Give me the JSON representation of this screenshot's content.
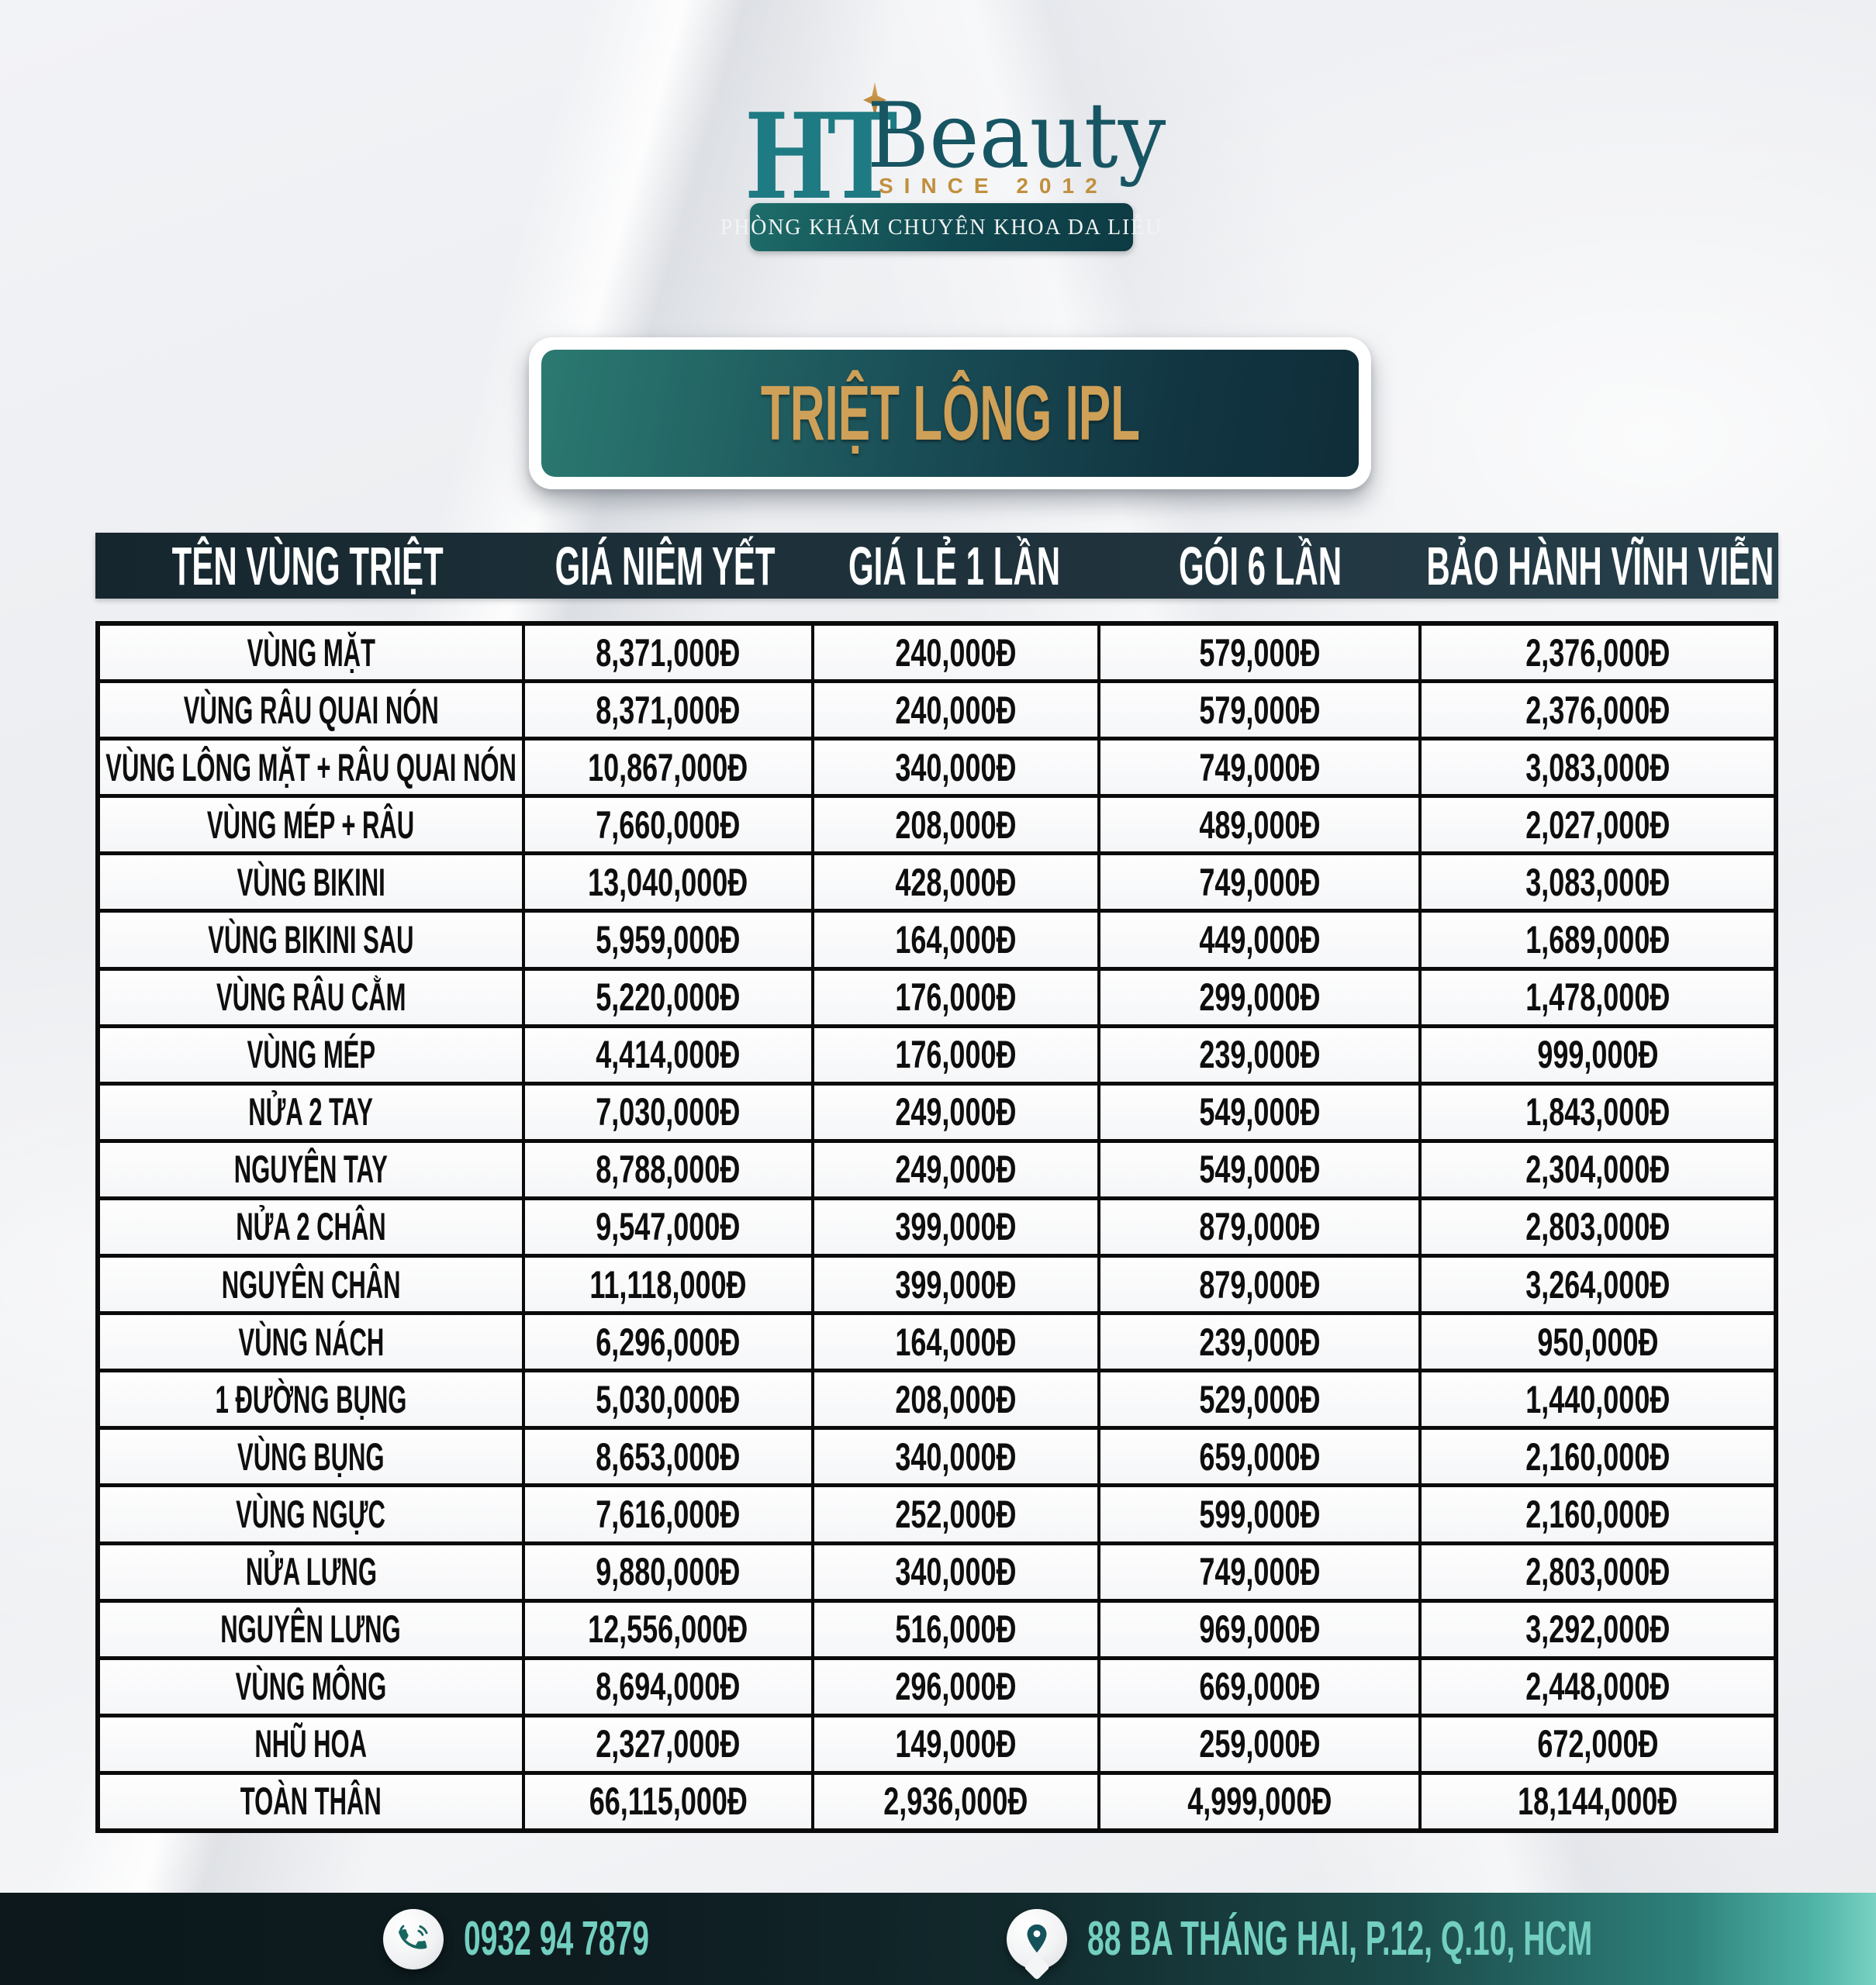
{
  "brand": {
    "monogram": "HT",
    "name": "Beauty",
    "since": "SINCE 2012",
    "tagline": "PHÒNG KHÁM CHUYÊN KHOA DA LIỄU"
  },
  "title": "TRIỆT LÔNG IPL",
  "table": {
    "headers": [
      "TÊN VÙNG TRIỆT",
      "GIÁ NIÊM YẾT",
      "GIÁ LẺ 1 LẦN",
      "GÓI 6 LẦN",
      "BẢO HÀNH VĨNH VIỄN"
    ],
    "rows": [
      [
        "VÙNG MẶT",
        "8,371,000Đ",
        "240,000Đ",
        "579,000Đ",
        "2,376,000Đ"
      ],
      [
        "VÙNG RÂU QUAI NÓN",
        "8,371,000Đ",
        "240,000Đ",
        "579,000Đ",
        "2,376,000Đ"
      ],
      [
        "VÙNG LÔNG MẶT + RÂU QUAI NÓN",
        "10,867,000Đ",
        "340,000Đ",
        "749,000Đ",
        "3,083,000Đ"
      ],
      [
        "VÙNG MÉP + RÂU",
        "7,660,000Đ",
        "208,000Đ",
        "489,000Đ",
        "2,027,000Đ"
      ],
      [
        "VÙNG BIKINI",
        "13,040,000Đ",
        "428,000Đ",
        "749,000Đ",
        "3,083,000Đ"
      ],
      [
        "VÙNG BIKINI SAU",
        "5,959,000Đ",
        "164,000Đ",
        "449,000Đ",
        "1,689,000Đ"
      ],
      [
        "VÙNG RÂU CẰM",
        "5,220,000Đ",
        "176,000Đ",
        "299,000Đ",
        "1,478,000Đ"
      ],
      [
        "VÙNG MÉP",
        "4,414,000Đ",
        "176,000Đ",
        "239,000Đ",
        "999,000Đ"
      ],
      [
        "NỬA 2 TAY",
        "7,030,000Đ",
        "249,000Đ",
        "549,000Đ",
        "1,843,000Đ"
      ],
      [
        "NGUYÊN TAY",
        "8,788,000Đ",
        "249,000Đ",
        "549,000Đ",
        "2,304,000Đ"
      ],
      [
        "NỬA 2 CHÂN",
        "9,547,000Đ",
        "399,000Đ",
        "879,000Đ",
        "2,803,000Đ"
      ],
      [
        "NGUYÊN CHÂN",
        "11,118,000Đ",
        "399,000Đ",
        "879,000Đ",
        "3,264,000Đ"
      ],
      [
        "VÙNG NÁCH",
        "6,296,000Đ",
        "164,000Đ",
        "239,000Đ",
        "950,000Đ"
      ],
      [
        "1 ĐƯỜNG BỤNG",
        "5,030,000Đ",
        "208,000Đ",
        "529,000Đ",
        "1,440,000Đ"
      ],
      [
        "VÙNG BỤNG",
        "8,653,000Đ",
        "340,000Đ",
        "659,000Đ",
        "2,160,000Đ"
      ],
      [
        "VÙNG NGỰC",
        "7,616,000Đ",
        "252,000Đ",
        "599,000Đ",
        "2,160,000Đ"
      ],
      [
        "NỬA LƯNG",
        "9,880,000Đ",
        "340,000Đ",
        "749,000Đ",
        "2,803,000Đ"
      ],
      [
        "NGUYÊN LƯNG",
        "12,556,000Đ",
        "516,000Đ",
        "969,000Đ",
        "3,292,000Đ"
      ],
      [
        "VÙNG MÔNG",
        "8,694,000Đ",
        "296,000Đ",
        "669,000Đ",
        "2,448,000Đ"
      ],
      [
        "NHŨ HOA",
        "2,327,000Đ",
        "149,000Đ",
        "259,000Đ",
        "672,000Đ"
      ],
      [
        "TOÀN THÂN",
        "66,115,000Đ",
        "2,936,000Đ",
        "4,999,000Đ",
        "18,144,000Đ"
      ]
    ]
  },
  "footer": {
    "phone": "0932 94 7879",
    "address": "88 BA THÁNG HAI, P.12, Q.10, HCM",
    "phone_icon": "phone-handset-with-waves",
    "location_icon": "map-pin"
  },
  "colors": {
    "teal_brand": "#1e7a83",
    "dark_navy": "#152b35",
    "gold": "#c18f3e",
    "title_gold": "#cfa057",
    "header_bar": "#1d3039",
    "table_border": "#0b0b0b",
    "footer_left": "#0c181b",
    "footer_right": "#52b6a9",
    "footer_text": "#73cfc0"
  }
}
